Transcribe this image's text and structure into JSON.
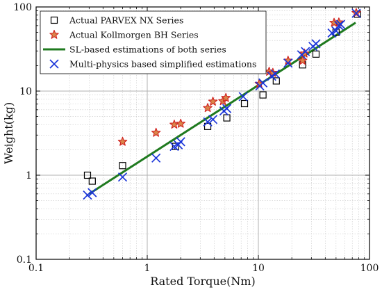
{
  "chart_data": {
    "type": "scatter",
    "xscale": "log",
    "yscale": "log",
    "xlim": [
      0.1,
      100
    ],
    "ylim": [
      0.1,
      100
    ],
    "xlabel": "Rated Torque(Nm)",
    "ylabel": "Weight(kg)",
    "xticks": [
      {
        "value": 0.1,
        "label": "0.1"
      },
      {
        "value": 1,
        "label": "1"
      },
      {
        "value": 10,
        "label": "10"
      },
      {
        "value": 100,
        "label": "100"
      }
    ],
    "yticks": [
      {
        "value": 0.1,
        "label": "0.1"
      },
      {
        "value": 1,
        "label": "1"
      },
      {
        "value": 10,
        "label": "10"
      },
      {
        "value": 100,
        "label": "100"
      }
    ],
    "grid": true,
    "legend_position": "top-left",
    "series": [
      {
        "name": "Actual PARVEX NX  Series",
        "marker": "open-square",
        "color": "#000000",
        "points": [
          [
            0.29,
            1.0
          ],
          [
            0.32,
            0.85
          ],
          [
            0.6,
            1.3
          ],
          [
            1.8,
            2.2
          ],
          [
            3.5,
            3.8
          ],
          [
            5.2,
            4.8
          ],
          [
            7.5,
            7.1
          ],
          [
            11,
            9.0
          ],
          [
            14.5,
            13.2
          ],
          [
            25,
            20.5
          ],
          [
            33,
            27.5
          ],
          [
            50,
            50.0
          ],
          [
            78,
            82.0
          ]
        ]
      },
      {
        "name": "Actual Kollmorgen BH Series",
        "marker": "star",
        "color": "#d11f1f",
        "fill": "#d9864a",
        "points": [
          [
            0.6,
            2.5
          ],
          [
            1.2,
            3.2
          ],
          [
            1.75,
            4.0
          ],
          [
            2.0,
            4.1
          ],
          [
            3.5,
            6.3
          ],
          [
            3.9,
            7.5
          ],
          [
            4.8,
            7.6
          ],
          [
            5.1,
            8.3
          ],
          [
            10.2,
            12.2
          ],
          [
            12.5,
            17.0
          ],
          [
            13.5,
            16.5
          ],
          [
            18.5,
            23.0
          ],
          [
            25,
            23.0
          ],
          [
            26,
            28.0
          ],
          [
            48,
            65.0
          ],
          [
            53,
            65.5
          ],
          [
            76,
            85.0
          ]
        ]
      },
      {
        "name": "SL-based estimations of both series",
        "marker": "line",
        "color": "#1f7a1f",
        "points": [
          [
            0.3,
            0.6
          ],
          [
            75,
            65.0
          ]
        ]
      },
      {
        "name": "Multi-physics based simplified estimations",
        "marker": "x",
        "color": "#1a35d9",
        "points": [
          [
            0.29,
            0.58
          ],
          [
            0.32,
            0.62
          ],
          [
            0.6,
            0.95
          ],
          [
            1.2,
            1.6
          ],
          [
            1.75,
            2.2
          ],
          [
            1.9,
            2.3
          ],
          [
            2.0,
            2.5
          ],
          [
            3.5,
            4.3
          ],
          [
            3.9,
            4.6
          ],
          [
            4.9,
            5.8
          ],
          [
            5.2,
            6.2
          ],
          [
            7.3,
            8.6
          ],
          [
            10.3,
            11.5
          ],
          [
            11,
            12.5
          ],
          [
            13.2,
            15.0
          ],
          [
            14.2,
            16.0
          ],
          [
            18.5,
            21.5
          ],
          [
            24.5,
            27.0
          ],
          [
            26.5,
            29.5
          ],
          [
            31,
            34.0
          ],
          [
            33,
            36.5
          ],
          [
            46,
            49.0
          ],
          [
            50,
            52.0
          ],
          [
            53,
            60.0
          ],
          [
            55,
            62.0
          ],
          [
            76,
            84.0
          ]
        ]
      }
    ]
  }
}
